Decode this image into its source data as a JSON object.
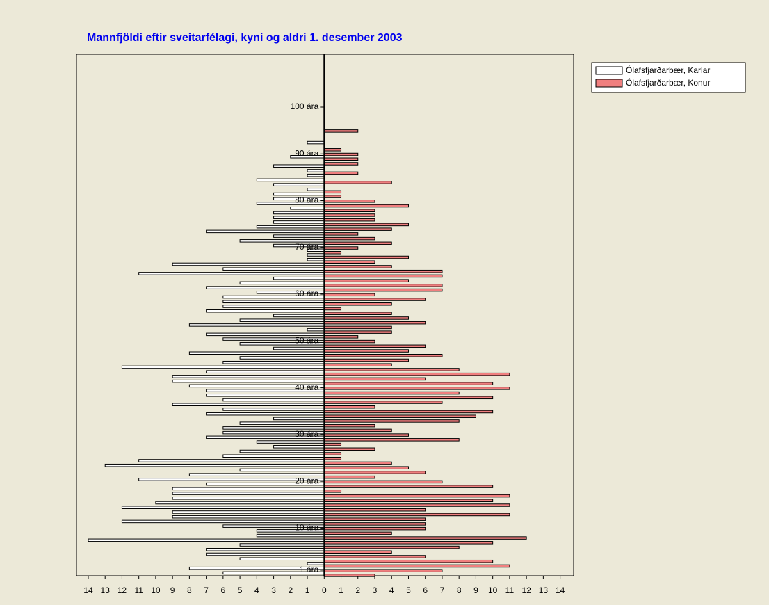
{
  "chart_data": {
    "type": "pyramid",
    "title": "Mannfjöldi eftir sveitarfélagi, kyni og aldri 1. desember 2003",
    "series": [
      {
        "name": "Ólafsfjarðarbær, Karlar",
        "color": "#ffffff",
        "side": "left",
        "values": [
          6,
          8,
          1,
          5,
          7,
          7,
          5,
          14,
          4,
          4,
          6,
          12,
          9,
          9,
          12,
          10,
          9,
          9,
          9,
          7,
          11,
          8,
          5,
          13,
          11,
          6,
          5,
          3,
          4,
          7,
          6,
          6,
          5,
          3,
          7,
          6,
          9,
          6,
          7,
          7,
          8,
          9,
          9,
          7,
          12,
          6,
          5,
          8,
          3,
          5,
          6,
          7,
          1,
          8,
          5,
          3,
          7,
          6,
          6,
          6,
          4,
          7,
          5,
          3,
          11,
          6,
          9,
          1,
          1,
          1,
          3,
          5,
          3,
          7,
          4,
          3,
          3,
          3,
          2,
          4,
          3,
          3,
          1,
          3,
          4,
          1,
          1,
          3,
          0,
          2,
          0,
          0,
          1,
          0,
          0,
          0,
          0,
          0,
          0,
          0,
          0
        ]
      },
      {
        "name": "Ólafsfjarðarbær, Konur",
        "color": "#f07f7f",
        "side": "right",
        "values": [
          3,
          7,
          11,
          10,
          6,
          4,
          8,
          10,
          12,
          4,
          6,
          6,
          6,
          11,
          6,
          11,
          10,
          11,
          1,
          10,
          7,
          3,
          6,
          5,
          4,
          1,
          1,
          3,
          1,
          8,
          5,
          4,
          3,
          8,
          9,
          10,
          3,
          7,
          10,
          8,
          11,
          10,
          6,
          11,
          8,
          4,
          5,
          7,
          5,
          6,
          3,
          2,
          4,
          4,
          6,
          5,
          4,
          1,
          4,
          6,
          3,
          7,
          7,
          5,
          7,
          7,
          4,
          3,
          5,
          1,
          2,
          4,
          3,
          2,
          4,
          5,
          3,
          3,
          3,
          5,
          3,
          1,
          1,
          0,
          4,
          0,
          2,
          0,
          2,
          2,
          2,
          1,
          0,
          0,
          0,
          2,
          0,
          0,
          0,
          0,
          0
        ]
      }
    ],
    "xlim": [
      -14.7,
      14.8
    ],
    "xticks": [
      {
        "value": -14,
        "label": "14"
      },
      {
        "value": -13,
        "label": "13"
      },
      {
        "value": -12,
        "label": "12"
      },
      {
        "value": -11,
        "label": "11"
      },
      {
        "value": -10,
        "label": "10"
      },
      {
        "value": -9,
        "label": "9"
      },
      {
        "value": -8,
        "label": "8"
      },
      {
        "value": -7,
        "label": "7"
      },
      {
        "value": -6,
        "label": "6"
      },
      {
        "value": -5,
        "label": "5"
      },
      {
        "value": -4,
        "label": "4"
      },
      {
        "value": -3,
        "label": "3"
      },
      {
        "value": -2,
        "label": "2"
      },
      {
        "value": -1,
        "label": "1"
      },
      0,
      1,
      2,
      3,
      4,
      5,
      6,
      7,
      8,
      9,
      10,
      11,
      12,
      13,
      14
    ],
    "ylim": [
      -0.2,
      111.3
    ],
    "yticks": [
      {
        "value": 1,
        "label": "1 ára"
      },
      {
        "value": 10,
        "label": "10 ára"
      },
      {
        "value": 20,
        "label": "20 ára"
      },
      {
        "value": 30,
        "label": "30 ára"
      },
      {
        "value": 40,
        "label": "40 ára"
      },
      {
        "value": 50,
        "label": "50 ára"
      },
      {
        "value": 60,
        "label": "60 ára"
      },
      {
        "value": 70,
        "label": "70 ára"
      },
      {
        "value": 80,
        "label": "80 ára"
      },
      {
        "value": 90,
        "label": "90 ára"
      },
      {
        "value": 100,
        "label": "100 ára"
      }
    ],
    "legend": "top-right"
  }
}
